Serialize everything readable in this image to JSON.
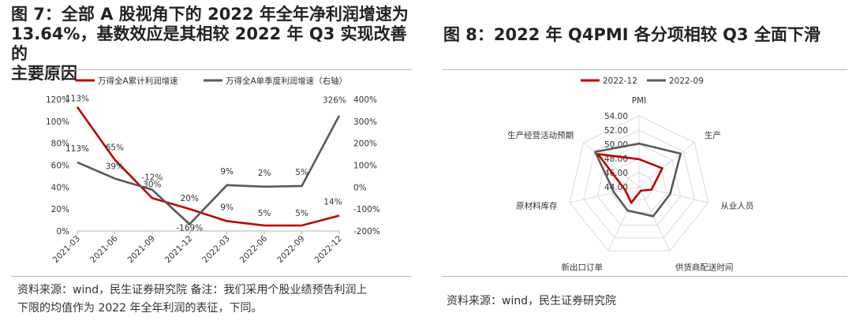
{
  "left": {
    "title_lines": [
      "图 7：全部 A 股视角下的 2022 年全年净利润增速为",
      "13.64%，基数效应是其相较 2022 年 Q3 实现改善的",
      "主要原因"
    ],
    "source_lines": [
      "资料来源：wind，民生证券研究院 备注：我们采用个股业绩预告利润上",
      "下限的均值作为 2022 年全年利润的表征，下同。"
    ]
  },
  "right": {
    "title": "图 8：2022 年 Q4PMI 各分项相较 Q3 全面下滑",
    "source": "资料来源：wind，民生证券研究院"
  },
  "chart_data": [
    {
      "type": "line",
      "categories": [
        "2021-03",
        "2021-06",
        "2021-09",
        "2021-12",
        "2022-03",
        "2022-06",
        "2022-09",
        "2022-12"
      ],
      "series": [
        {
          "name": "万得全A累计利润增速",
          "axis": "left",
          "color": "#c00000",
          "values": [
            113,
            65,
            30,
            20,
            9,
            5,
            5,
            14
          ],
          "labels": [
            "113%",
            "65%",
            "30%",
            "20%",
            "9%",
            "5%",
            "5%",
            "14%"
          ]
        },
        {
          "name": "万得全A单季度利润增速（右轴）",
          "axis": "right",
          "color": "#595959",
          "values": [
            113,
            39,
            -12,
            -169,
            9,
            2,
            5,
            326
          ],
          "labels": [
            "113%",
            "39%",
            "-12%",
            "-169%",
            "9%",
            "2%",
            "5%",
            "326%"
          ]
        }
      ],
      "ylim_left": [
        0,
        120
      ],
      "yticks_left": [
        "0%",
        "20%",
        "40%",
        "60%",
        "80%",
        "100%",
        "120%"
      ],
      "ylim_right": [
        -200,
        400
      ],
      "yticks_right": [
        "-200%",
        "-100%",
        "0%",
        "100%",
        "200%",
        "300%",
        "400%"
      ],
      "legend": "top"
    },
    {
      "type": "radar",
      "axes": [
        "PMI",
        "生产",
        "从业人员",
        "供货商配送时间",
        "新出口订单",
        "原材料库存",
        "生产经营活动预期"
      ],
      "rlim": [
        44,
        54
      ],
      "rticks": [
        "44.00",
        "46.00",
        "48.00",
        "50.00",
        "52.00",
        "54.00"
      ],
      "series": [
        {
          "name": "2022-12",
          "color": "#c00000",
          "values": [
            47.9,
            48.2,
            45.8,
            44.6,
            46.5,
            46.0,
            51.4
          ]
        },
        {
          "name": "2022-09",
          "color": "#595959",
          "values": [
            50.1,
            51.5,
            48.5,
            48.6,
            47.7,
            47.6,
            51.9
          ]
        }
      ],
      "legend": "top"
    }
  ]
}
